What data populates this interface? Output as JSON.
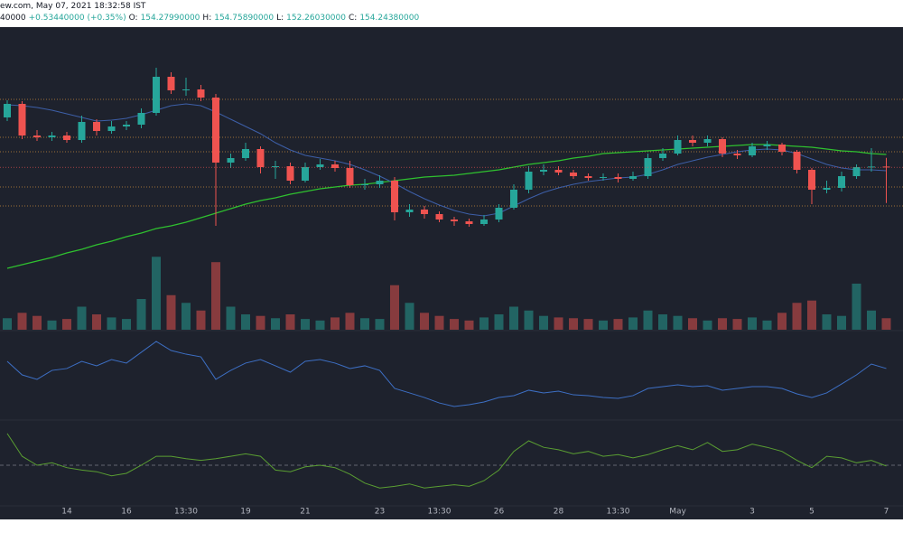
{
  "chart_data": {
    "type": "candlestick",
    "header": {
      "source": "ew.com, May 07, 2021 18:32:58 IST",
      "price_fragment": "40000",
      "change": "+0.53440000 (+0.35%)",
      "ohlc": [
        {
          "label": "O:",
          "value": "154.27990000"
        },
        {
          "label": "H:",
          "value": "154.75890000"
        },
        {
          "label": "L:",
          "value": "152.26030000"
        },
        {
          "label": "C:",
          "value": "154.24380000"
        }
      ]
    },
    "categories": [
      null,
      null,
      null,
      null,
      "14",
      null,
      null,
      null,
      "16",
      null,
      null,
      null,
      "13:30",
      null,
      null,
      null,
      "19",
      null,
      null,
      null,
      "21",
      null,
      null,
      null,
      null,
      "23",
      null,
      null,
      null,
      "13:30",
      null,
      null,
      null,
      "26",
      null,
      null,
      null,
      "28",
      null,
      null,
      null,
      "13:30",
      null,
      null,
      null,
      "May",
      null,
      null,
      null,
      null,
      "3",
      null,
      null,
      null,
      "5",
      null,
      null,
      null,
      null,
      "7"
    ],
    "open": [
      157.0,
      157.75,
      156.0,
      155.9,
      156.0,
      155.75,
      156.75,
      156.25,
      156.5,
      156.6,
      157.25,
      159.25,
      158.5,
      158.55,
      158.1,
      154.5,
      154.75,
      155.25,
      154.25,
      154.3,
      153.5,
      154.25,
      154.4,
      154.2,
      153.25,
      153.3,
      153.5,
      151.75,
      151.9,
      151.65,
      151.35,
      151.25,
      151.1,
      151.35,
      152.0,
      153.0,
      154.0,
      154.1,
      153.95,
      153.75,
      153.65,
      153.7,
      153.6,
      153.75,
      154.75,
      155.0,
      155.75,
      155.6,
      155.8,
      155.0,
      154.9,
      155.4,
      155.5,
      155.1,
      154.1,
      153.0,
      153.1,
      153.75,
      154.25,
      154.28
    ],
    "high": [
      157.95,
      157.9,
      156.3,
      156.2,
      156.2,
      157.1,
      156.9,
      156.8,
      156.8,
      157.5,
      159.75,
      159.5,
      159.2,
      158.8,
      158.3,
      155.0,
      155.6,
      155.4,
      154.6,
      154.5,
      154.5,
      154.7,
      154.6,
      154.6,
      153.6,
      153.8,
      153.7,
      152.2,
      152.1,
      151.8,
      151.5,
      151.4,
      151.6,
      152.2,
      153.3,
      154.3,
      154.4,
      154.3,
      154.1,
      153.9,
      153.9,
      153.9,
      154.0,
      155.0,
      155.3,
      156.0,
      156.0,
      156.0,
      155.9,
      155.2,
      155.6,
      155.7,
      155.6,
      155.2,
      154.2,
      153.5,
      154.0,
      154.4,
      155.3,
      154.76
    ],
    "low": [
      156.8,
      155.8,
      155.7,
      155.7,
      155.6,
      155.6,
      156.0,
      156.1,
      156.3,
      156.4,
      157.1,
      158.3,
      158.2,
      157.9,
      151.0,
      154.2,
      154.6,
      153.9,
      153.6,
      153.3,
      153.4,
      154.1,
      154.0,
      153.1,
      153.0,
      153.1,
      151.3,
      151.5,
      151.4,
      151.2,
      151.0,
      150.95,
      151.0,
      151.2,
      151.9,
      152.8,
      153.8,
      153.8,
      153.6,
      153.5,
      153.5,
      153.4,
      153.5,
      153.6,
      154.6,
      154.9,
      155.4,
      155.4,
      154.8,
      154.7,
      154.8,
      155.2,
      154.9,
      153.9,
      152.2,
      152.8,
      152.9,
      153.6,
      154.0,
      152.26
    ],
    "close": [
      157.75,
      156.0,
      155.9,
      156.0,
      155.75,
      156.75,
      156.25,
      156.5,
      156.6,
      157.25,
      159.25,
      158.5,
      158.55,
      158.1,
      154.5,
      154.75,
      155.25,
      154.25,
      154.3,
      153.5,
      154.25,
      154.4,
      154.2,
      153.25,
      153.3,
      153.5,
      151.75,
      151.9,
      151.65,
      151.35,
      151.25,
      151.1,
      151.35,
      152.0,
      153.0,
      154.0,
      154.1,
      153.95,
      153.75,
      153.65,
      153.7,
      153.6,
      153.75,
      154.75,
      155.0,
      155.75,
      155.6,
      155.8,
      155.0,
      154.9,
      155.4,
      155.5,
      155.1,
      154.1,
      153.0,
      153.1,
      153.75,
      154.25,
      154.28,
      154.24
    ],
    "ylim": [
      145.25,
      162
    ],
    "up_color": "#26a69a",
    "down_color": "#ef5350",
    "levels": [
      158.0,
      155.9,
      155.1,
      153.15,
      152.1
    ],
    "level_color": "#c98a3a",
    "ma_fast": {
      "color": "#3d5fa8",
      "values": [
        157.7,
        157.65,
        157.55,
        157.4,
        157.2,
        157.0,
        156.8,
        156.85,
        156.95,
        157.15,
        157.4,
        157.65,
        157.75,
        157.65,
        157.3,
        156.9,
        156.5,
        156.1,
        155.6,
        155.2,
        154.9,
        154.75,
        154.6,
        154.4,
        154.1,
        153.75,
        153.35,
        152.9,
        152.5,
        152.15,
        151.85,
        151.65,
        151.55,
        151.7,
        152.1,
        152.5,
        152.85,
        153.1,
        153.3,
        153.45,
        153.55,
        153.65,
        153.7,
        153.85,
        154.1,
        154.4,
        154.6,
        154.8,
        154.95,
        155.1,
        155.2,
        155.25,
        155.2,
        155.0,
        154.7,
        154.4,
        154.2,
        154.1,
        154.1,
        154.05
      ]
    },
    "ma_slow": {
      "color": "#2fc12f",
      "values": [
        148.65,
        148.85,
        149.05,
        149.25,
        149.5,
        149.7,
        149.95,
        150.15,
        150.4,
        150.6,
        150.85,
        151.0,
        151.2,
        151.45,
        151.7,
        151.95,
        152.2,
        152.4,
        152.55,
        152.75,
        152.9,
        153.05,
        153.15,
        153.25,
        153.3,
        153.4,
        153.5,
        153.6,
        153.7,
        153.75,
        153.8,
        153.9,
        154.0,
        154.1,
        154.25,
        154.4,
        154.5,
        154.6,
        154.75,
        154.85,
        155.0,
        155.05,
        155.1,
        155.15,
        155.2,
        155.25,
        155.3,
        155.35,
        155.4,
        155.45,
        155.5,
        155.5,
        155.45,
        155.4,
        155.35,
        155.25,
        155.15,
        155.1,
        155.0,
        154.95
      ]
    },
    "volume": [
      15,
      22,
      18,
      12,
      14,
      30,
      20,
      16,
      14,
      40,
      95,
      45,
      35,
      25,
      88,
      30,
      20,
      18,
      15,
      20,
      14,
      12,
      16,
      22,
      15,
      14,
      58,
      35,
      22,
      18,
      14,
      12,
      16,
      20,
      30,
      25,
      18,
      16,
      15,
      14,
      12,
      14,
      16,
      25,
      20,
      18,
      15,
      12,
      15,
      14,
      16,
      12,
      22,
      35,
      38,
      20,
      18,
      60,
      25,
      15
    ],
    "volume_ylim": [
      0,
      100
    ],
    "indicators": [
      {
        "color": "#3d6fc4",
        "ylim": [
          20,
          80
        ],
        "values": [
          60,
          50,
          46.7,
          53.3,
          54.7,
          60,
          56.7,
          61.3,
          58.7,
          66.7,
          74.7,
          68,
          65.3,
          63.3,
          46.7,
          53.3,
          58.7,
          61.3,
          56.7,
          52,
          60,
          61.3,
          58.7,
          54.7,
          56.7,
          53.3,
          40,
          36.7,
          33.3,
          29.3,
          26.7,
          28,
          30,
          33.3,
          34.7,
          38.7,
          36.7,
          38,
          35.3,
          34.7,
          33.3,
          32.7,
          34.7,
          40,
          41.3,
          42.7,
          41.3,
          42,
          38.7,
          40,
          41.3,
          41.3,
          40,
          36,
          33.3,
          36.7,
          43.3,
          50,
          58,
          54.7
        ]
      },
      {
        "color": "#5a9e32",
        "ylim": [
          -50,
          50
        ],
        "reference": 0,
        "values": [
          39,
          11,
          0,
          3,
          -3,
          -6,
          -8,
          -13,
          -10,
          0,
          11,
          11,
          8,
          6,
          8,
          11,
          14,
          11,
          -6,
          -8,
          -2,
          0,
          -3,
          -11,
          -22,
          -28,
          -26,
          -23,
          -28,
          -26,
          -24,
          -26,
          -19,
          -6,
          17,
          30,
          22,
          19,
          14,
          17,
          11,
          13,
          9,
          13,
          19,
          24,
          19,
          28,
          17,
          19,
          26,
          22,
          17,
          6,
          -3,
          11,
          9,
          3,
          6,
          -1
        ]
      }
    ]
  }
}
